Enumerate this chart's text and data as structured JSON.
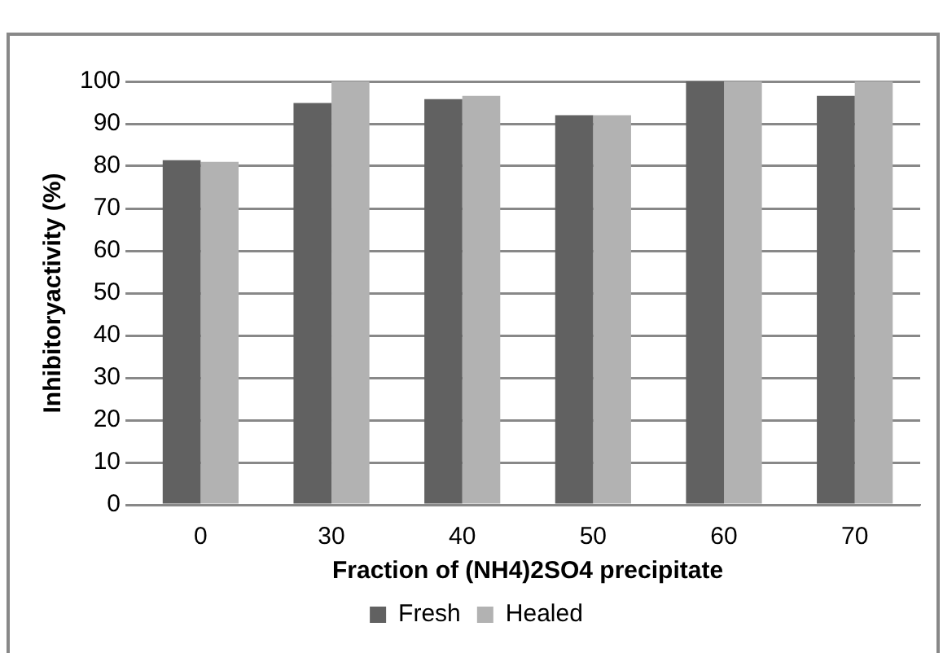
{
  "chart_data": {
    "type": "bar",
    "xlabel": "Fraction of (NH4)2SO4 precipitate",
    "ylabel": "Inhibitoryactivity (%)",
    "categories": [
      "0",
      "30",
      "40",
      "50",
      "60",
      "70"
    ],
    "series": [
      {
        "name": "Fresh",
        "color": "#616161",
        "values": [
          81.4,
          94.9,
          95.8,
          92,
          100,
          96.6
        ]
      },
      {
        "name": "Healed",
        "color": "#b2b2b2",
        "values": [
          81,
          100,
          96.6,
          92,
          100,
          100
        ]
      }
    ],
    "ylim": [
      0,
      100
    ],
    "yticks": [
      0,
      10,
      20,
      30,
      40,
      50,
      60,
      70,
      80,
      90,
      100
    ],
    "grid": "y",
    "legend": "bottom"
  }
}
